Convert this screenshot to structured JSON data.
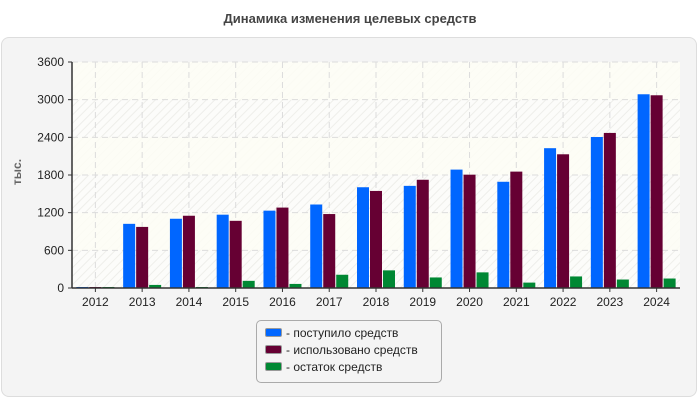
{
  "chart_data": {
    "type": "bar",
    "title": "Динамика изменения целевых средств",
    "xlabel": "",
    "ylabel": "тыс.",
    "ylim": [
      0,
      3600
    ],
    "yticks": [
      0,
      600,
      1200,
      1800,
      2400,
      3000,
      3600
    ],
    "grid": true,
    "legend_position": "bottom-center",
    "legend_prefix": "- ",
    "categories": [
      "2012",
      "2013",
      "2014",
      "2015",
      "2016",
      "2017",
      "2018",
      "2019",
      "2020",
      "2021",
      "2022",
      "2023",
      "2024"
    ],
    "series": [
      {
        "name": "поступило средств",
        "color": "#0066ff",
        "values": [
          16,
          1022,
          1103,
          1168,
          1232,
          1330,
          1605,
          1627,
          1886,
          1692,
          2227,
          2405,
          3086
        ]
      },
      {
        "name": "использовано средств",
        "color": "#660033",
        "values": [
          16,
          973,
          1151,
          1070,
          1281,
          1178,
          1546,
          1724,
          1805,
          1854,
          2130,
          2470,
          3070
        ]
      },
      {
        "name": "остаток средств",
        "color": "#008833",
        "values": [
          16,
          49,
          16,
          114,
          65,
          211,
          281,
          168,
          249,
          86,
          184,
          135,
          151
        ]
      }
    ]
  }
}
